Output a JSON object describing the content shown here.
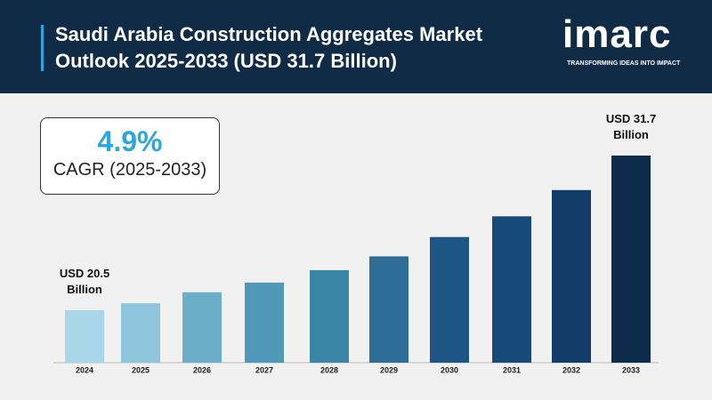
{
  "chart_data": {
    "type": "bar",
    "title": "Saudi Arabia Construction Aggregates Market Outlook 2025-2033 (USD 31.7 Billion)",
    "categories": [
      "2024",
      "2025",
      "2026",
      "2027",
      "2028",
      "2029",
      "2030",
      "2031",
      "2032",
      "2033"
    ],
    "values": [
      20.5,
      21.0,
      21.8,
      22.5,
      23.4,
      24.4,
      25.8,
      27.3,
      29.2,
      31.7
    ],
    "value_labels": [
      "USD 20.5 Billion",
      null,
      null,
      null,
      null,
      null,
      null,
      null,
      null,
      "USD 31.7 Billion"
    ],
    "colors": [
      "#a9d6e8",
      "#8ec5dd",
      "#6cadc9",
      "#4f98b8",
      "#3a84a8",
      "#2e6e96",
      "#1d5685",
      "#174a78",
      "#123d68",
      "#0d2b4b"
    ],
    "cagr": {
      "value": "4.9%",
      "label": "CAGR (2025-2033)"
    }
  },
  "logo": {
    "name": "imarc",
    "tagline": "TRANSFORMING IDEAS INTO IMPACT"
  }
}
